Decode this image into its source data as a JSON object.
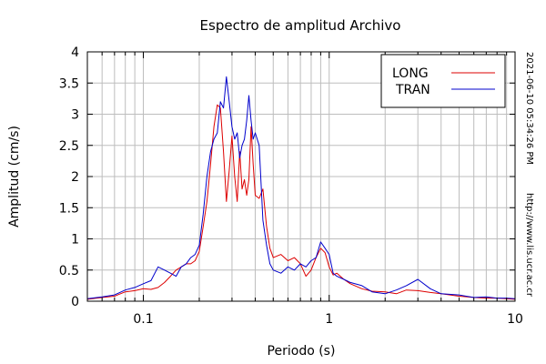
{
  "chart_data": {
    "type": "line",
    "title": "Espectro de amplitud Archivo",
    "xlabel": "Periodo (s)",
    "ylabel": "Amplitud (cm/s)",
    "x_scale": "log",
    "xlim": [
      0.05,
      10
    ],
    "ylim": [
      0,
      4
    ],
    "x_ticks": [
      0.1,
      1,
      10
    ],
    "x_tick_labels": [
      "0.1",
      "1",
      "10"
    ],
    "y_ticks": [
      0,
      0.5,
      1,
      1.5,
      2,
      2.5,
      3,
      3.5,
      4
    ],
    "y_tick_labels": [
      "0",
      "0.5",
      "1",
      "1.5",
      "2",
      "2.5",
      "3",
      "3.5",
      "4"
    ],
    "grid": true,
    "legend_position": "top-right",
    "series": [
      {
        "name": "LONG",
        "color": "#dd0000",
        "x": [
          0.05,
          0.06,
          0.07,
          0.08,
          0.09,
          0.1,
          0.11,
          0.12,
          0.13,
          0.14,
          0.15,
          0.16,
          0.17,
          0.18,
          0.19,
          0.2,
          0.21,
          0.22,
          0.23,
          0.24,
          0.25,
          0.26,
          0.27,
          0.28,
          0.29,
          0.3,
          0.31,
          0.32,
          0.33,
          0.34,
          0.35,
          0.36,
          0.37,
          0.38,
          0.39,
          0.4,
          0.42,
          0.44,
          0.46,
          0.48,
          0.5,
          0.55,
          0.6,
          0.65,
          0.7,
          0.75,
          0.8,
          0.85,
          0.9,
          0.95,
          1.0,
          1.05,
          1.1,
          1.2,
          1.3,
          1.5,
          1.7,
          2.0,
          2.3,
          2.6,
          3.0,
          3.5,
          4.0,
          5.0,
          6.0,
          7.0,
          8.0,
          9.0,
          10.0
        ],
        "y": [
          0.03,
          0.06,
          0.08,
          0.15,
          0.17,
          0.2,
          0.19,
          0.22,
          0.3,
          0.4,
          0.5,
          0.55,
          0.6,
          0.6,
          0.65,
          0.8,
          1.2,
          1.6,
          2.2,
          2.8,
          3.15,
          3.1,
          2.4,
          1.6,
          2.1,
          2.65,
          2.0,
          1.6,
          2.4,
          1.8,
          1.95,
          1.7,
          1.95,
          2.8,
          2.2,
          1.7,
          1.65,
          1.8,
          1.2,
          0.85,
          0.7,
          0.75,
          0.65,
          0.7,
          0.6,
          0.4,
          0.5,
          0.7,
          0.85,
          0.78,
          0.55,
          0.42,
          0.45,
          0.35,
          0.28,
          0.2,
          0.16,
          0.15,
          0.12,
          0.18,
          0.17,
          0.14,
          0.12,
          0.08,
          0.06,
          0.05,
          0.05,
          0.04,
          0.03
        ]
      },
      {
        "name": "TRAN",
        "color": "#0000cc",
        "x": [
          0.05,
          0.06,
          0.07,
          0.08,
          0.09,
          0.1,
          0.11,
          0.12,
          0.13,
          0.14,
          0.15,
          0.16,
          0.17,
          0.18,
          0.19,
          0.2,
          0.21,
          0.22,
          0.23,
          0.24,
          0.25,
          0.26,
          0.27,
          0.28,
          0.29,
          0.3,
          0.31,
          0.32,
          0.33,
          0.34,
          0.35,
          0.36,
          0.37,
          0.38,
          0.39,
          0.4,
          0.42,
          0.44,
          0.46,
          0.48,
          0.5,
          0.55,
          0.6,
          0.65,
          0.7,
          0.75,
          0.8,
          0.85,
          0.9,
          0.95,
          1.0,
          1.05,
          1.1,
          1.2,
          1.3,
          1.5,
          1.7,
          2.0,
          2.3,
          2.6,
          3.0,
          3.5,
          4.0,
          5.0,
          6.0,
          7.0,
          8.0,
          9.0,
          10.0
        ],
        "y": [
          0.04,
          0.07,
          0.1,
          0.18,
          0.22,
          0.28,
          0.33,
          0.55,
          0.5,
          0.45,
          0.4,
          0.55,
          0.6,
          0.7,
          0.75,
          0.9,
          1.4,
          2.0,
          2.4,
          2.6,
          2.7,
          3.2,
          3.1,
          3.6,
          3.2,
          2.8,
          2.6,
          2.7,
          2.3,
          2.5,
          2.6,
          2.9,
          3.3,
          2.9,
          2.6,
          2.7,
          2.5,
          1.3,
          0.9,
          0.6,
          0.5,
          0.45,
          0.55,
          0.5,
          0.6,
          0.55,
          0.65,
          0.7,
          0.95,
          0.85,
          0.75,
          0.45,
          0.4,
          0.35,
          0.3,
          0.25,
          0.15,
          0.12,
          0.18,
          0.25,
          0.35,
          0.2,
          0.12,
          0.1,
          0.06,
          0.07,
          0.05,
          0.05,
          0.04
        ]
      }
    ]
  },
  "side_text": {
    "timestamp": "2021-06-10 05:34:26 PM",
    "url": "http://www.lis.ucr.ac.cr"
  }
}
